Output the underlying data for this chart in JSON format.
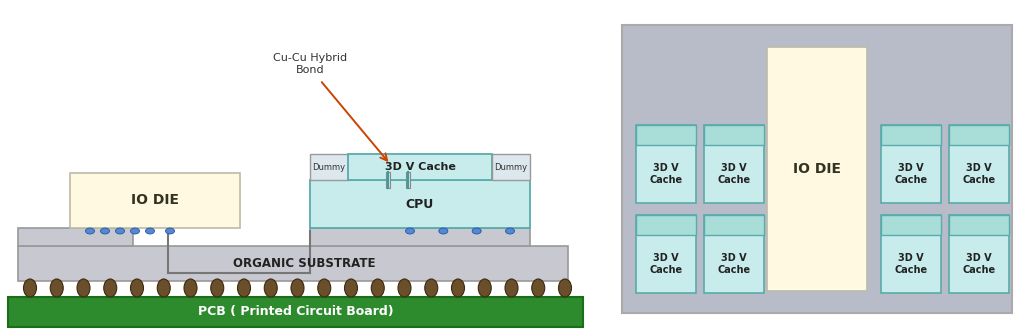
{
  "bg_color": "#ffffff",
  "pcb_color": "#2d8a2d",
  "pcb_text": "PCB ( Printed Circuit Board)",
  "substrate_color": "#c8c8d0",
  "substrate_text": "ORGANIC SUBSTRATE",
  "io_die_color": "#fef9e0",
  "io_die_text": "IO DIE",
  "cache_color": "#c8ecec",
  "cpu_color": "#c8ecec",
  "dummy_color": "#dce8ee",
  "bump_color": "#6b4e2a",
  "bond_label": "Cu-Cu Hybrid\nBond",
  "arrow_color": "#cc4400",
  "right_panel_bg": "#b8bcc8",
  "right_io_die_color": "#fef9e0",
  "right_cache_color": "#c8ecec",
  "right_cache_cap": "#a8ddd8",
  "blue_bump": "#5588cc",
  "teal_line": "#30a0a0"
}
